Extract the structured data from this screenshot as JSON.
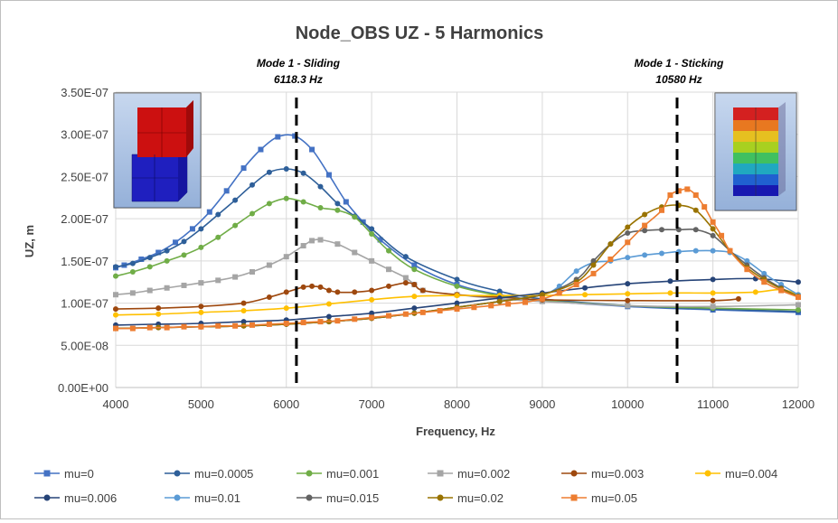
{
  "chart_data": {
    "type": "line",
    "title": "Node_OBS UZ - 5 Harmonics",
    "xlabel": "Frequency, Hz",
    "ylabel": "UZ, m",
    "xlim": [
      4000,
      12000
    ],
    "ylim": [
      0,
      3.5e-07
    ],
    "x_ticks": [
      "4000",
      "5000",
      "6000",
      "7000",
      "8000",
      "9000",
      "10000",
      "11000",
      "12000"
    ],
    "y_ticks": [
      "0.00E+00",
      "5.00E-08",
      "1.00E-07",
      "1.50E-07",
      "2.00E-07",
      "2.50E-07",
      "3.00E-07",
      "3.50E-07"
    ],
    "grid": true,
    "legend_position": "bottom",
    "annotations": [
      {
        "title": "Mode 1 - Sliding",
        "value_label": "6118.3 Hz",
        "x": 6118.3
      },
      {
        "title": "Mode 1 - Sticking",
        "value_label": "10580 Hz",
        "x": 10580
      }
    ],
    "series": [
      {
        "name": "mu=0",
        "color": "#4472c4",
        "marker": "square",
        "x": [
          4000,
          4100,
          4300,
          4500,
          4700,
          4900,
          5100,
          5300,
          5500,
          5700,
          5900,
          6100,
          6300,
          6500,
          6700,
          6900,
          7100,
          7500,
          8000,
          8500,
          9000,
          10000,
          11000,
          12000
        ],
        "y": [
          1.42e-07,
          1.45e-07,
          1.52e-07,
          1.6e-07,
          1.72e-07,
          1.88e-07,
          2.08e-07,
          2.33e-07,
          2.6e-07,
          2.82e-07,
          2.97e-07,
          2.98e-07,
          2.82e-07,
          2.52e-07,
          2.2e-07,
          1.96e-07,
          1.75e-07,
          1.45e-07,
          1.22e-07,
          1.1e-07,
          1.03e-07,
          9.6e-08,
          9.2e-08,
          8.9e-08
        ]
      },
      {
        "name": "mu=0.0005",
        "color": "#2e5f99",
        "marker": "circle",
        "x": [
          4000,
          4200,
          4400,
          4600,
          4800,
          5000,
          5200,
          5400,
          5600,
          5800,
          6000,
          6200,
          6400,
          6600,
          6800,
          7000,
          7400,
          8000,
          8500,
          9000,
          10000,
          11000,
          12000
        ],
        "y": [
          1.43e-07,
          1.47e-07,
          1.54e-07,
          1.62e-07,
          1.73e-07,
          1.88e-07,
          2.05e-07,
          2.22e-07,
          2.4e-07,
          2.55e-07,
          2.59e-07,
          2.54e-07,
          2.38e-07,
          2.18e-07,
          2.03e-07,
          1.88e-07,
          1.55e-07,
          1.28e-07,
          1.14e-07,
          1.05e-07,
          9.7e-08,
          9.3e-08,
          9e-08
        ]
      },
      {
        "name": "mu=0.001",
        "color": "#70ad47",
        "marker": "circle",
        "x": [
          4000,
          4200,
          4400,
          4600,
          4800,
          5000,
          5200,
          5400,
          5600,
          5800,
          6000,
          6200,
          6400,
          6600,
          6800,
          7000,
          7200,
          7500,
          8000,
          8500,
          9000,
          10000,
          11000,
          12000
        ],
        "y": [
          1.32e-07,
          1.37e-07,
          1.43e-07,
          1.5e-07,
          1.57e-07,
          1.66e-07,
          1.78e-07,
          1.92e-07,
          2.06e-07,
          2.18e-07,
          2.24e-07,
          2.2e-07,
          2.13e-07,
          2.1e-07,
          2.02e-07,
          1.82e-07,
          1.62e-07,
          1.4e-07,
          1.2e-07,
          1.09e-07,
          1.03e-07,
          9.7e-08,
          9.4e-08,
          9.2e-08
        ]
      },
      {
        "name": "mu=0.002",
        "color": "#a5a5a5",
        "marker": "square",
        "x": [
          4000,
          4200,
          4400,
          4600,
          4800,
          5000,
          5200,
          5400,
          5600,
          5800,
          6000,
          6200,
          6300,
          6400,
          6600,
          6800,
          7000,
          7200,
          7400,
          7500,
          7600,
          8000,
          8500,
          9000,
          10000,
          11000,
          12000
        ],
        "y": [
          1.1e-07,
          1.12e-07,
          1.15e-07,
          1.18e-07,
          1.21e-07,
          1.24e-07,
          1.27e-07,
          1.31e-07,
          1.37e-07,
          1.45e-07,
          1.55e-07,
          1.68e-07,
          1.74e-07,
          1.75e-07,
          1.7e-07,
          1.6e-07,
          1.5e-07,
          1.4e-07,
          1.3e-07,
          1.22e-07,
          1.15e-07,
          1.1e-07,
          1.05e-07,
          1.02e-07,
          9.7e-08,
          9.6e-08,
          9.8e-08
        ]
      },
      {
        "name": "mu=0.003",
        "color": "#9e480e",
        "marker": "circle",
        "x": [
          4000,
          4500,
          5000,
          5500,
          5800,
          6000,
          6200,
          6300,
          6400,
          6500,
          6600,
          6800,
          7000,
          7200,
          7400,
          7500,
          7600,
          8000,
          8500,
          9000,
          10000,
          11000,
          11300
        ],
        "y": [
          9.3e-08,
          9.4e-08,
          9.6e-08,
          1e-07,
          1.07e-07,
          1.13e-07,
          1.19e-07,
          1.2e-07,
          1.19e-07,
          1.15e-07,
          1.13e-07,
          1.13e-07,
          1.15e-07,
          1.2e-07,
          1.24e-07,
          1.22e-07,
          1.15e-07,
          1.1e-07,
          1.07e-07,
          1.04e-07,
          1.03e-07,
          1.03e-07,
          1.05e-07
        ]
      },
      {
        "name": "mu=0.004",
        "color": "#ffc000",
        "marker": "circle",
        "x": [
          4000,
          4500,
          5000,
          5500,
          6000,
          6500,
          7000,
          7500,
          8000,
          8500,
          9000,
          9500,
          10000,
          10500,
          11000,
          11500,
          11800,
          12000
        ],
        "y": [
          8.6e-08,
          8.7e-08,
          8.9e-08,
          9.1e-08,
          9.4e-08,
          9.9e-08,
          1.04e-07,
          1.08e-07,
          1.09e-07,
          1.09e-07,
          1.09e-07,
          1.1e-07,
          1.11e-07,
          1.12e-07,
          1.12e-07,
          1.13e-07,
          1.16e-07,
          1.1e-07
        ]
      },
      {
        "name": "mu=0.006",
        "color": "#264478",
        "marker": "circle",
        "x": [
          4000,
          4500,
          5000,
          5500,
          6000,
          6500,
          7000,
          7500,
          8000,
          8500,
          9000,
          9500,
          10000,
          10500,
          11000,
          11500,
          12000
        ],
        "y": [
          7.4e-08,
          7.5e-08,
          7.6e-08,
          7.8e-08,
          8e-08,
          8.4e-08,
          8.8e-08,
          9.4e-08,
          1e-07,
          1.06e-07,
          1.12e-07,
          1.18e-07,
          1.23e-07,
          1.26e-07,
          1.28e-07,
          1.29e-07,
          1.25e-07
        ]
      },
      {
        "name": "mu=0.01",
        "color": "#5b9bd5",
        "marker": "circle",
        "x": [
          4000,
          4500,
          5000,
          5500,
          6000,
          6500,
          7000,
          7500,
          8000,
          8500,
          9000,
          9200,
          9400,
          9600,
          9800,
          10000,
          10200,
          10400,
          10600,
          10800,
          11000,
          11200,
          11400,
          11600,
          11800,
          12000
        ],
        "y": [
          7e-08,
          7.1e-08,
          7.2e-08,
          7.3e-08,
          7.5e-08,
          7.8e-08,
          8.2e-08,
          8.8e-08,
          9.5e-08,
          1.02e-07,
          1.1e-07,
          1.2e-07,
          1.38e-07,
          1.48e-07,
          1.5e-07,
          1.54e-07,
          1.57e-07,
          1.59e-07,
          1.61e-07,
          1.62e-07,
          1.62e-07,
          1.6e-07,
          1.5e-07,
          1.35e-07,
          1.22e-07,
          1.1e-07
        ]
      },
      {
        "name": "mu=0.015",
        "color": "#636363",
        "marker": "circle",
        "x": [
          4000,
          4500,
          5000,
          5500,
          6000,
          6500,
          7000,
          7500,
          8000,
          8500,
          9000,
          9400,
          9600,
          9800,
          10000,
          10200,
          10400,
          10600,
          10800,
          11000,
          11200,
          11400,
          11600,
          11800,
          12000
        ],
        "y": [
          7e-08,
          7.1e-08,
          7.2e-08,
          7.3e-08,
          7.5e-08,
          7.8e-08,
          8.2e-08,
          8.8e-08,
          9.5e-08,
          1.02e-07,
          1.1e-07,
          1.28e-07,
          1.5e-07,
          1.7e-07,
          1.83e-07,
          1.86e-07,
          1.87e-07,
          1.87e-07,
          1.87e-07,
          1.8e-07,
          1.62e-07,
          1.45e-07,
          1.3e-07,
          1.18e-07,
          1.08e-07
        ]
      },
      {
        "name": "mu=0.02",
        "color": "#997300",
        "marker": "circle",
        "x": [
          4000,
          4500,
          5000,
          5500,
          6000,
          6500,
          7000,
          7500,
          8000,
          8500,
          9000,
          9400,
          9600,
          9800,
          10000,
          10200,
          10400,
          10600,
          10800,
          11000,
          11200,
          11400,
          11600,
          11800,
          12000
        ],
        "y": [
          7e-08,
          7.1e-08,
          7.2e-08,
          7.3e-08,
          7.5e-08,
          7.8e-08,
          8.2e-08,
          8.8e-08,
          9.5e-08,
          1.02e-07,
          1.1e-07,
          1.25e-07,
          1.45e-07,
          1.7e-07,
          1.9e-07,
          2.05e-07,
          2.14e-07,
          2.16e-07,
          2.1e-07,
          1.88e-07,
          1.62e-07,
          1.42e-07,
          1.28e-07,
          1.17e-07,
          1.08e-07
        ]
      },
      {
        "name": "mu=0.05",
        "color": "#ed7d31",
        "marker": "square",
        "x": [
          4000,
          4200,
          4400,
          4600,
          4800,
          5000,
          5200,
          5400,
          5600,
          5800,
          6000,
          6200,
          6400,
          6600,
          6800,
          7000,
          7200,
          7400,
          7600,
          7800,
          8000,
          8200,
          8400,
          8600,
          8800,
          9000,
          9200,
          9400,
          9600,
          9800,
          10000,
          10200,
          10400,
          10500,
          10600,
          10700,
          10800,
          10900,
          11000,
          11100,
          11200,
          11400,
          11600,
          11800,
          12000
        ],
        "y": [
          7e-08,
          7e-08,
          7.1e-08,
          7.1e-08,
          7.2e-08,
          7.2e-08,
          7.3e-08,
          7.3e-08,
          7.4e-08,
          7.5e-08,
          7.6e-08,
          7.7e-08,
          7.8e-08,
          7.9e-08,
          8.1e-08,
          8.3e-08,
          8.5e-08,
          8.7e-08,
          8.9e-08,
          9.1e-08,
          9.3e-08,
          9.5e-08,
          9.7e-08,
          9.9e-08,
          1.01e-07,
          1.05e-07,
          1.12e-07,
          1.22e-07,
          1.35e-07,
          1.52e-07,
          1.72e-07,
          1.92e-07,
          2.1e-07,
          2.28e-07,
          2.33e-07,
          2.35e-07,
          2.28e-07,
          2.14e-07,
          1.96e-07,
          1.8e-07,
          1.62e-07,
          1.4e-07,
          1.25e-07,
          1.15e-07,
          1.07e-07
        ]
      }
    ]
  }
}
